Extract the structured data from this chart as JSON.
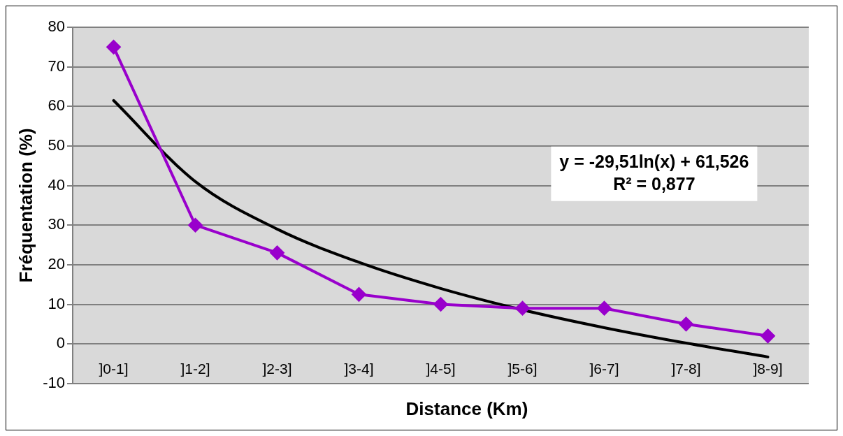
{
  "chart_data": {
    "type": "line",
    "xlabel": "Distance (Km)",
    "ylabel": "Fréquentation (%)",
    "categories": [
      "]0-1]",
      "]1-2]",
      "]2-3]",
      "]3-4]",
      "]4-5]",
      "]5-6]",
      "]6-7]",
      "]7-8]",
      "]8-9]"
    ],
    "series": [
      {
        "color": "#9900cc",
        "marker": "diamond",
        "values": [
          75,
          30,
          23,
          12.5,
          10,
          9,
          9,
          5,
          2
        ]
      },
      {
        "type": "line",
        "color": "#000000",
        "marker": "none",
        "x": [
          "]0-1]",
          "]1-2]",
          "]2-3]",
          "]3-4]",
          "]4-5]",
          "]5-6]",
          "]6-7]",
          "]7-8]",
          "]8-9]"
        ],
        "values": [
          61.5,
          41,
          29,
          20.6,
          14,
          8.6,
          4.1,
          0.2,
          -3.3
        ]
      }
    ],
    "ylim": [
      -10,
      80
    ],
    "yticks": [
      -10,
      0,
      10,
      20,
      30,
      40,
      50,
      60,
      70,
      80
    ],
    "grid": "y",
    "legend": false,
    "annotations": [
      "y = -29,51ln(x) + 61,526",
      "R² = 0,877"
    ]
  }
}
